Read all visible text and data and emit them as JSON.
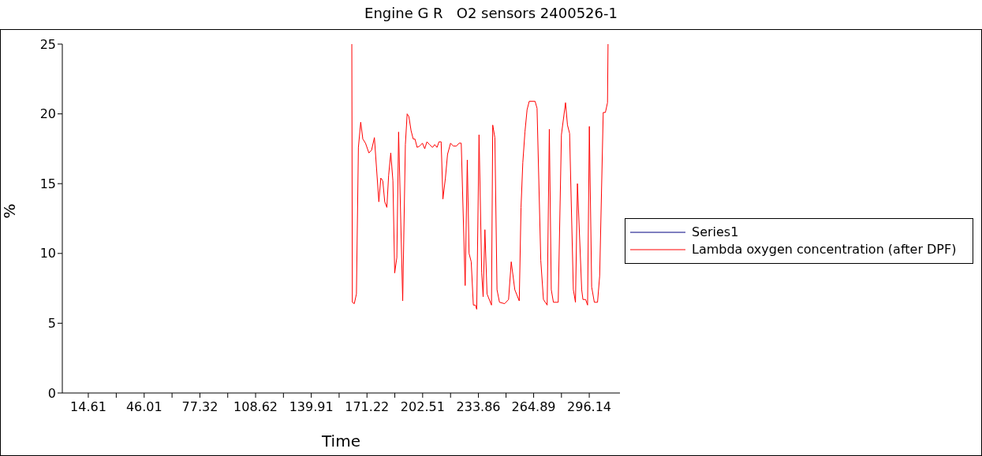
{
  "chart_data": {
    "type": "line",
    "title": "Engine G R   O2 sensors 2400526-1",
    "xlabel": "Time",
    "ylabel": "%",
    "xlim": [
      0,
      313.4
    ],
    "ylim": [
      0,
      25
    ],
    "yticks": [
      0,
      5,
      10,
      15,
      20,
      25
    ],
    "xticks": [
      14.61,
      {
        "value": 30.31,
        "label": null
      },
      46.01,
      {
        "value": 61.67,
        "label": null
      },
      77.32,
      {
        "value": 92.97,
        "label": null
      },
      108.62,
      {
        "value": 124.27,
        "label": null
      },
      139.91,
      {
        "value": 155.57,
        "label": null
      },
      171.22,
      {
        "value": 186.87,
        "label": null
      },
      202.51,
      {
        "value": 218.19,
        "label": null
      },
      233.86,
      {
        "value": 249.38,
        "label": null
      },
      264.89,
      {
        "value": 280.52,
        "label": null
      },
      296.14
    ],
    "grid": false,
    "legend": "right",
    "series": [
      {
        "name": "Series1",
        "color": "#000080"
      },
      {
        "name": "Lambda oxygen concentration (after DPF)",
        "color": "#ff0000",
        "x": [
          162.7,
          163.0,
          164.1,
          165.3,
          166.4,
          167.7,
          168.9,
          170.4,
          172.3,
          173.8,
          175.4,
          177.9,
          179.0,
          180.1,
          181.2,
          182.4,
          183.4,
          184.6,
          185.8,
          186.8,
          188.0,
          189.0,
          191.3,
          192.8,
          193.8,
          194.8,
          196.0,
          197.2,
          198.2,
          199.4,
          200.9,
          202.4,
          203.7,
          204.9,
          206.4,
          208.1,
          209.3,
          210.6,
          211.7,
          212.9,
          213.9,
          215.3,
          216.5,
          218.2,
          219.7,
          221.5,
          223.0,
          224.2,
          226.4,
          227.6,
          228.6,
          229.8,
          231.0,
          232.2,
          232.9,
          234.2,
          235.7,
          236.5,
          237.5,
          238.7,
          241.2,
          241.9,
          243.1,
          244.3,
          245.7,
          248.6,
          250.8,
          252.3,
          254.3,
          256.8,
          257.8,
          258.8,
          260.0,
          261.2,
          262.4,
          265.7,
          266.8,
          268.9,
          270.4,
          272.5,
          273.7,
          274.8,
          276.0,
          278.7,
          280.5,
          282.8,
          283.9,
          285.1,
          287.2,
          288.4,
          289.5,
          291.9,
          292.6,
          294.1,
          295.2,
          296.2,
          297.5,
          299.0,
          300.8,
          302.0,
          304.0,
          305.2,
          306.4,
          306.7
        ],
        "values": [
          25,
          6.5,
          6.4,
          7.1,
          17.6,
          19.4,
          18.2,
          17.9,
          17.2,
          17.4,
          18.3,
          13.7,
          15.4,
          15.2,
          13.7,
          13.3,
          15.6,
          17.2,
          15.2,
          8.6,
          9.7,
          18.7,
          6.6,
          17.8,
          20.0,
          19.8,
          18.8,
          18.2,
          18.2,
          17.6,
          17.7,
          17.9,
          17.5,
          18.0,
          17.8,
          17.6,
          17.8,
          17.6,
          18.0,
          18.0,
          13.9,
          15.4,
          17.1,
          17.9,
          17.7,
          17.7,
          17.9,
          17.9,
          7.7,
          16.7,
          10.0,
          9.4,
          6.3,
          6.3,
          6.0,
          18.5,
          8.6,
          6.9,
          11.7,
          7.1,
          6.3,
          19.2,
          18.3,
          7.4,
          6.5,
          6.4,
          6.7,
          9.4,
          7.4,
          6.6,
          13.3,
          16.5,
          18.7,
          20.3,
          20.9,
          20.9,
          20.4,
          9.5,
          6.7,
          6.3,
          18.9,
          7.4,
          6.5,
          6.5,
          18.5,
          20.8,
          19.2,
          18.6,
          7.4,
          6.5,
          15.0,
          7.4,
          6.7,
          6.7,
          6.3,
          19.1,
          7.6,
          6.5,
          6.5,
          8.4,
          20.1,
          20.1,
          20.8,
          25
        ]
      }
    ]
  }
}
